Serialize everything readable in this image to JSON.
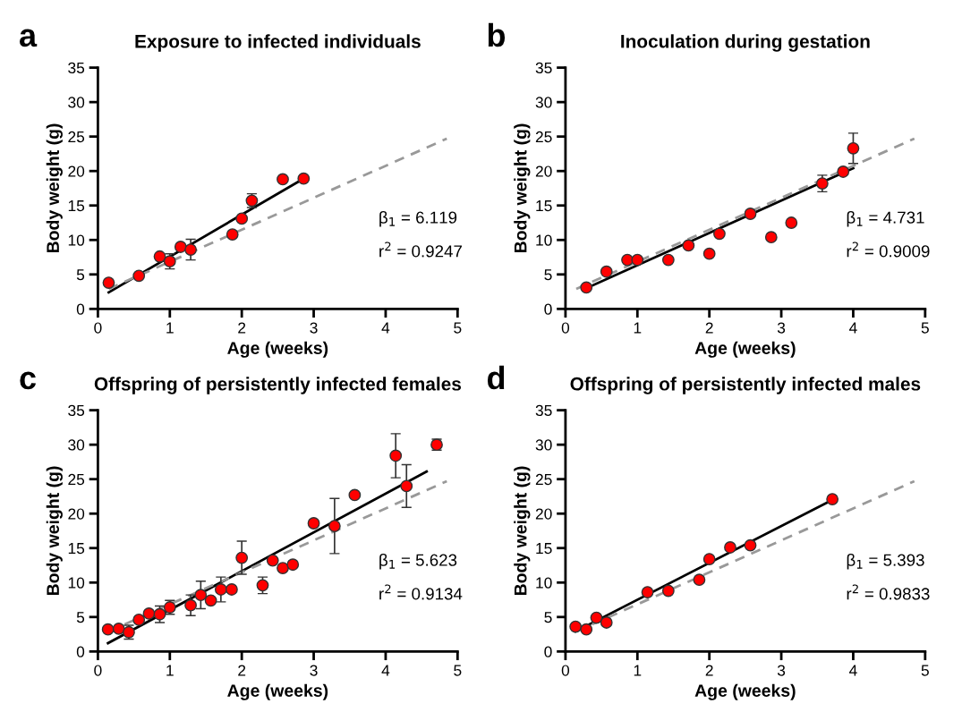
{
  "chart_data": [
    {
      "type": "scatter",
      "title": "Exposure to infected individuals",
      "xlabel": "Age (weeks)",
      "ylabel": "Body weight (g)",
      "annotations": [
        "a",
        "β$_{1}$ = 6.119",
        "r$^{2}$ = 0.9247"
      ],
      "xlim": [
        0,
        5
      ],
      "ylim": [
        0,
        35
      ],
      "xticks": [
        0,
        1,
        2,
        3,
        4,
        5
      ],
      "yticks": [
        0,
        5,
        10,
        15,
        20,
        25,
        30,
        35
      ],
      "series": [
        {
          "marker": "circle",
          "color": "#ff0000",
          "x": [
            0.15,
            0.57,
            0.86,
            1.0,
            1.15,
            1.29,
            1.87,
            2.0,
            2.14,
            2.57,
            2.86
          ],
          "values": [
            3.8,
            4.8,
            7.6,
            6.9,
            9.0,
            8.6,
            10.8,
            13.1,
            15.7,
            18.8,
            18.9
          ],
          "errors": [
            null,
            null,
            null,
            1.1,
            null,
            1.5,
            null,
            null,
            1.0,
            null,
            null
          ]
        },
        {
          "type": "line",
          "color": "#000000",
          "line_style": "solid",
          "x": [
            0.15,
            2.86
          ],
          "values": [
            2.4,
            18.9
          ]
        },
        {
          "type": "line",
          "color": "#999999",
          "line_style": "dashed",
          "x": [
            0.15,
            4.85
          ],
          "values": [
            2.9,
            24.7
          ]
        }
      ]
    },
    {
      "type": "scatter",
      "title": "Inoculation during gestation",
      "xlabel": "Age (weeks)",
      "ylabel": "Body weight (g)",
      "annotations": [
        "b",
        "β$_{1}$ = 4.731",
        "r$^{2}$ = 0.9009"
      ],
      "xlim": [
        0,
        5
      ],
      "ylim": [
        0,
        35
      ],
      "xticks": [
        0,
        1,
        2,
        3,
        4,
        5
      ],
      "yticks": [
        0,
        5,
        10,
        15,
        20,
        25,
        30,
        35
      ],
      "series": [
        {
          "marker": "circle",
          "color": "#ff0000",
          "x": [
            0.29,
            0.57,
            0.86,
            1.0,
            1.43,
            1.71,
            2.0,
            2.14,
            2.57,
            2.86,
            3.14,
            3.57,
            3.86,
            4.0
          ],
          "values": [
            3.1,
            5.4,
            7.1,
            7.1,
            7.1,
            9.2,
            8.0,
            10.9,
            13.8,
            10.4,
            12.5,
            18.2,
            19.9,
            23.3
          ],
          "errors": [
            null,
            null,
            null,
            null,
            null,
            null,
            null,
            null,
            null,
            null,
            null,
            1.2,
            null,
            2.2
          ]
        },
        {
          "type": "line",
          "color": "#000000",
          "line_style": "solid",
          "x": [
            0.29,
            4.0
          ],
          "values": [
            3.0,
            20.4
          ]
        },
        {
          "type": "line",
          "color": "#999999",
          "line_style": "dashed",
          "x": [
            0.15,
            4.85
          ],
          "values": [
            2.9,
            24.7
          ]
        }
      ]
    },
    {
      "type": "scatter",
      "title": "Offspring of persistently infected females",
      "xlabel": "Age (weeks)",
      "ylabel": "Body weight (g)",
      "annotations": [
        "c",
        "β$_{1}$ = 5.623",
        "r$^{2}$ = 0.9134"
      ],
      "xlim": [
        0,
        5
      ],
      "ylim": [
        0,
        35
      ],
      "xticks": [
        0,
        1,
        2,
        3,
        4,
        5
      ],
      "yticks": [
        0,
        5,
        10,
        15,
        20,
        25,
        30,
        35
      ],
      "series": [
        {
          "marker": "circle",
          "color": "#ff0000",
          "x": [
            0.14,
            0.29,
            0.43,
            0.57,
            0.71,
            0.86,
            1.0,
            1.29,
            1.43,
            1.57,
            1.71,
            1.86,
            2.0,
            2.29,
            2.43,
            2.57,
            2.71,
            3.0,
            3.29,
            3.57,
            4.14,
            4.29,
            4.71
          ],
          "values": [
            3.2,
            3.3,
            2.8,
            4.6,
            5.5,
            5.4,
            6.4,
            6.7,
            8.2,
            7.4,
            9.0,
            9.0,
            13.6,
            9.6,
            13.2,
            12.1,
            12.6,
            18.6,
            18.2,
            22.7,
            28.4,
            24.0,
            30.0
          ],
          "errors": [
            null,
            null,
            1.0,
            null,
            null,
            1.2,
            1.0,
            1.5,
            2.0,
            null,
            1.8,
            null,
            2.4,
            1.2,
            null,
            null,
            null,
            null,
            4.0,
            null,
            3.2,
            3.1,
            0.8
          ]
        },
        {
          "type": "line",
          "color": "#000000",
          "line_style": "solid",
          "x": [
            0.14,
            4.57
          ],
          "values": [
            1.2,
            26.1
          ]
        },
        {
          "type": "line",
          "color": "#999999",
          "line_style": "dashed",
          "x": [
            0.15,
            4.85
          ],
          "values": [
            2.9,
            24.7
          ]
        }
      ]
    },
    {
      "type": "scatter",
      "title": "Offspring of persistently infected males",
      "xlabel": "Age (weeks)",
      "ylabel": "Body weight (g)",
      "annotations": [
        "d",
        "β$_{1}$ = 5.393",
        "r$^{2}$ = 0.9833"
      ],
      "xlim": [
        0,
        5
      ],
      "ylim": [
        0,
        35
      ],
      "xticks": [
        0,
        1,
        2,
        3,
        4,
        5
      ],
      "yticks": [
        0,
        5,
        10,
        15,
        20,
        25,
        30,
        35
      ],
      "series": [
        {
          "marker": "circle",
          "color": "#ff0000",
          "x": [
            0.14,
            0.29,
            0.43,
            0.57,
            1.14,
            1.43,
            1.86,
            2.0,
            2.29,
            2.57,
            3.71
          ],
          "values": [
            3.6,
            3.2,
            4.9,
            4.2,
            8.6,
            8.8,
            10.4,
            13.4,
            15.1,
            15.4,
            22.1
          ]
        },
        {
          "type": "line",
          "color": "#000000",
          "line_style": "solid",
          "x": [
            0.14,
            3.71
          ],
          "values": [
            2.9,
            22.0
          ]
        },
        {
          "type": "line",
          "color": "#999999",
          "line_style": "dashed",
          "x": [
            0.15,
            4.85
          ],
          "values": [
            2.9,
            24.7
          ]
        }
      ]
    }
  ]
}
